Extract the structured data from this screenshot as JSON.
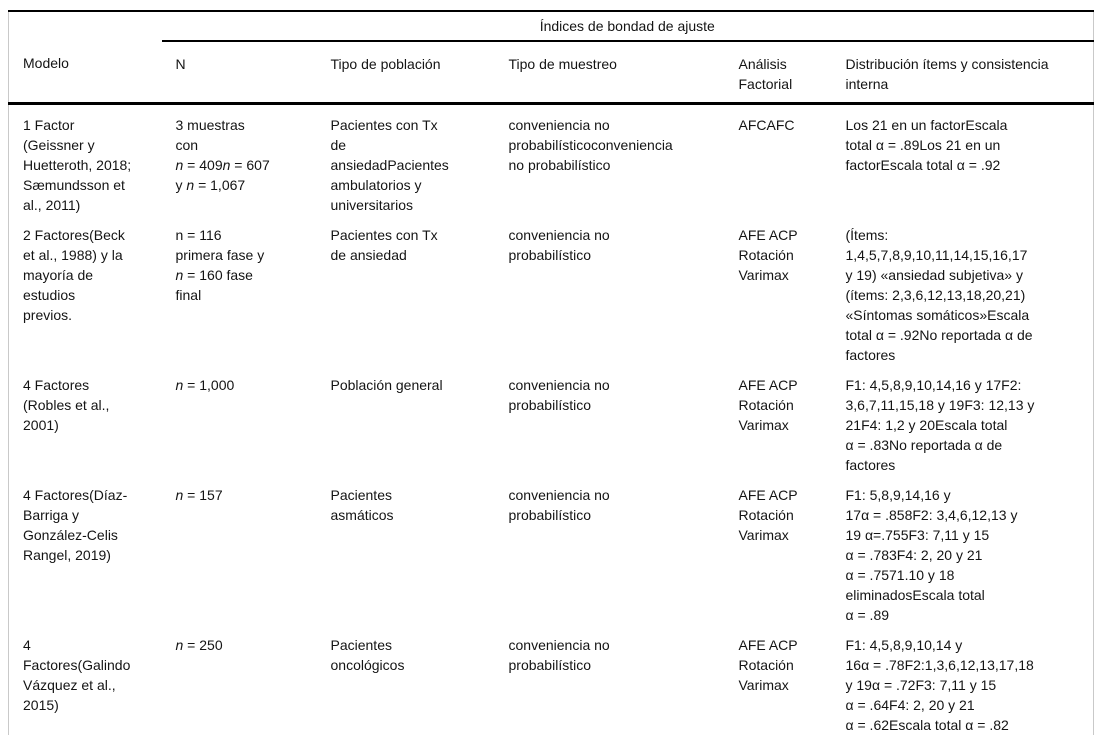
{
  "table": {
    "spanner": "Índices de bondad de ajuste",
    "columns": {
      "modelo": "Modelo",
      "n": "N",
      "poblacion": "Tipo de población",
      "muestreo": "Tipo de muestreo",
      "analisis": "Análisis\nFactorial",
      "distribucion": "Distribución ítems y consistencia\ninterna"
    },
    "rows": [
      {
        "modelo": "1 Factor\n(Geissner y\nHuetteroth, 2018;\nSæmundsson et\nal., 2011)",
        "n": [
          {
            "t": "3 muestras\ncon\n"
          },
          {
            "t": "n",
            "i": true
          },
          {
            "t": " = 409"
          },
          {
            "t": "n",
            "i": true
          },
          {
            "t": " = 607\ny "
          },
          {
            "t": "n",
            "i": true
          },
          {
            "t": " = 1,067"
          }
        ],
        "poblacion": "Pacientes con Tx\nde\nansiedadPacientes\nambulatorios y\nuniversitarios",
        "muestreo": "conveniencia no\nprobabilísticoconveniencia\nno probabilístico",
        "analisis": "AFCAFC",
        "distribucion": "Los 21 en un factorEscala\ntotal α = .89Los 21 en un\nfactorEscala total α = .92"
      },
      {
        "modelo": "2 Factores(Beck\net al., 1988) y la\nmayoría de\nestudios\nprevios.",
        "n": [
          {
            "t": "n = 116\nprimera fase y\n"
          },
          {
            "t": "n",
            "i": true
          },
          {
            "t": " = 160 fase\nfinal"
          }
        ],
        "poblacion": "Pacientes con Tx\nde ansiedad",
        "muestreo": "conveniencia no\nprobabilístico",
        "analisis": "AFE ACP\nRotación\nVarimax",
        "distribucion": "(Ítems:\n1,4,5,7,8,9,10,11,14,15,16,17\ny 19) «ansiedad subjetiva» y\n(ítems: 2,3,6,12,13,18,20,21)\n«Síntomas somáticos»Escala\ntotal α = .92No reportada α de\nfactores"
      },
      {
        "modelo": "4 Factores\n(Robles et al.,\n2001)",
        "n": [
          {
            "t": "n",
            "i": true
          },
          {
            "t": " = 1,000"
          }
        ],
        "poblacion": "Población general",
        "muestreo": "conveniencia no\nprobabilístico",
        "analisis": "AFE ACP\nRotación\nVarimax",
        "distribucion": "F1: 4,5,8,9,10,14,16 y 17F2:\n3,6,7,11,15,18 y 19F3: 12,13 y\n21F4: 1,2 y 20Escala total\nα = .83No reportada α de\nfactores"
      },
      {
        "modelo": "4 Factores(Díaz-\nBarriga y\nGonzález-Celis\nRangel, 2019)",
        "n": [
          {
            "t": "n",
            "i": true
          },
          {
            "t": " = 157"
          }
        ],
        "poblacion": "Pacientes\nasmáticos",
        "muestreo": "conveniencia no\nprobabilístico",
        "analisis": "AFE ACP\nRotación\nVarimax",
        "distribucion": "F1: 5,8,9,14,16 y\n17α = .858F2: 3,4,6,12,13 y\n19 α=.755F3: 7,11 y 15\nα = .783F4: 2, 20 y 21\nα = .7571.10 y 18\neliminadosEscala total\nα = .89"
      },
      {
        "modelo": "4\nFactores(Galindo\nVázquez et al.,\n2015)",
        "n": [
          {
            "t": "n",
            "i": true
          },
          {
            "t": " = 250"
          }
        ],
        "poblacion": "Pacientes\noncológicos",
        "muestreo": "conveniencia no\nprobabilístico",
        "analisis": "AFE ACP\nRotación\nVarimax",
        "distribucion": "F1: 4,5,8,9,10,14 y\n16α = .78F2:1,3,6,12,13,17,18\ny 19α = .72F3: 7,11 y 15\nα = .64F4: 2, 20 y 21\nα = .62Escala total α = .82"
      }
    ]
  }
}
